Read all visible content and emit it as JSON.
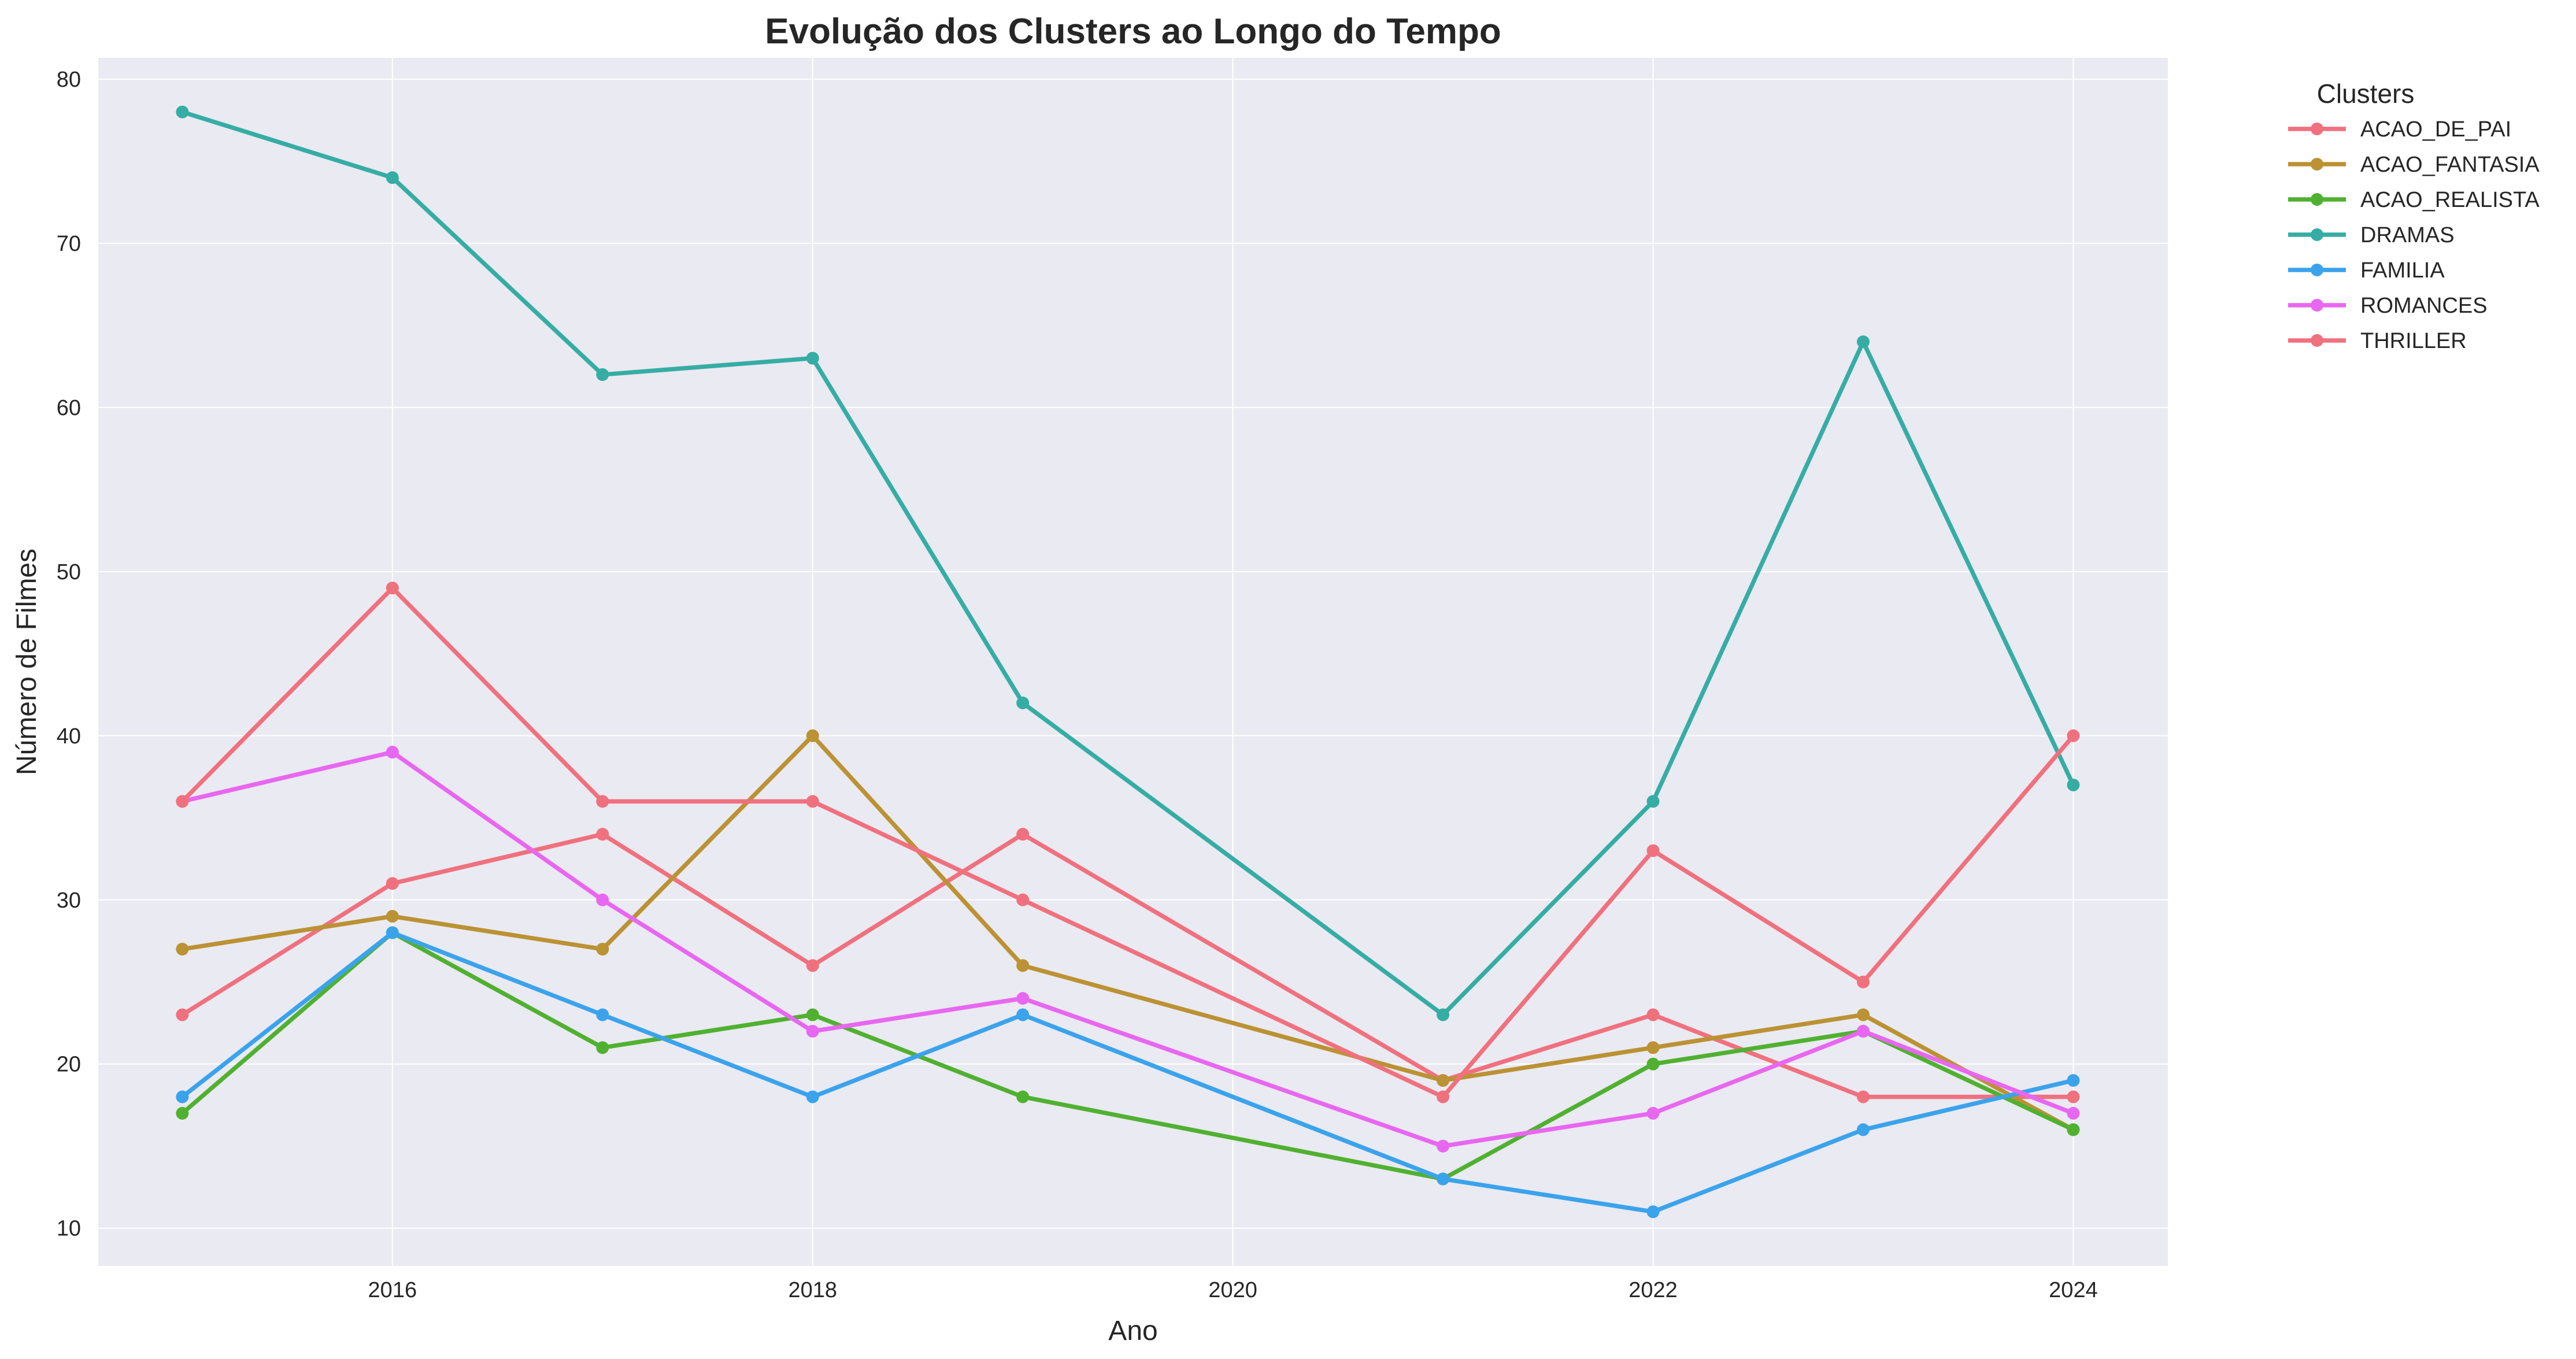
{
  "chart_data": {
    "type": "line",
    "title": "Evolução dos Clusters ao Longo do Tempo",
    "xlabel": "Ano",
    "ylabel": "Número de Filmes",
    "x": [
      2015,
      2016,
      2017,
      2018,
      2019,
      2021,
      2022,
      2023,
      2024
    ],
    "xlim": [
      2014.6,
      2024.45
    ],
    "ylim": [
      7.7,
      81.3
    ],
    "xticks": [
      "2016",
      "2018",
      "2020",
      "2022",
      "2024"
    ],
    "yticks": [
      "10",
      "20",
      "30",
      "40",
      "50",
      "60",
      "70",
      "80"
    ],
    "grid": true,
    "legend_title": "Clusters",
    "legend_position": "outside-right",
    "series": [
      {
        "name": "ACAO_DE_PAI",
        "color": "#f0717e",
        "values": [
          23,
          31,
          34,
          26,
          34,
          19,
          23,
          18,
          18
        ]
      },
      {
        "name": "ACAO_FANTASIA",
        "color": "#bb9234",
        "values": [
          27,
          29,
          27,
          40,
          26,
          19,
          21,
          23,
          16
        ]
      },
      {
        "name": "ACAO_REALISTA",
        "color": "#50b131",
        "values": [
          17,
          28,
          21,
          23,
          18,
          13,
          20,
          22,
          16
        ]
      },
      {
        "name": "DRAMAS",
        "color": "#36ada4",
        "values": [
          78,
          74,
          62,
          63,
          42,
          23,
          36,
          64,
          37
        ]
      },
      {
        "name": "FAMILIA",
        "color": "#3ba3ec",
        "values": [
          18,
          28,
          23,
          18,
          23,
          13,
          11,
          16,
          19
        ]
      },
      {
        "name": "ROMANCES",
        "color": "#e867f0",
        "values": [
          36,
          39,
          30,
          22,
          24,
          15,
          17,
          22,
          17
        ]
      },
      {
        "name": "THRILLER",
        "color": "#f0717e",
        "values": [
          36,
          49,
          36,
          36,
          30,
          18,
          33,
          25,
          40
        ]
      }
    ]
  }
}
